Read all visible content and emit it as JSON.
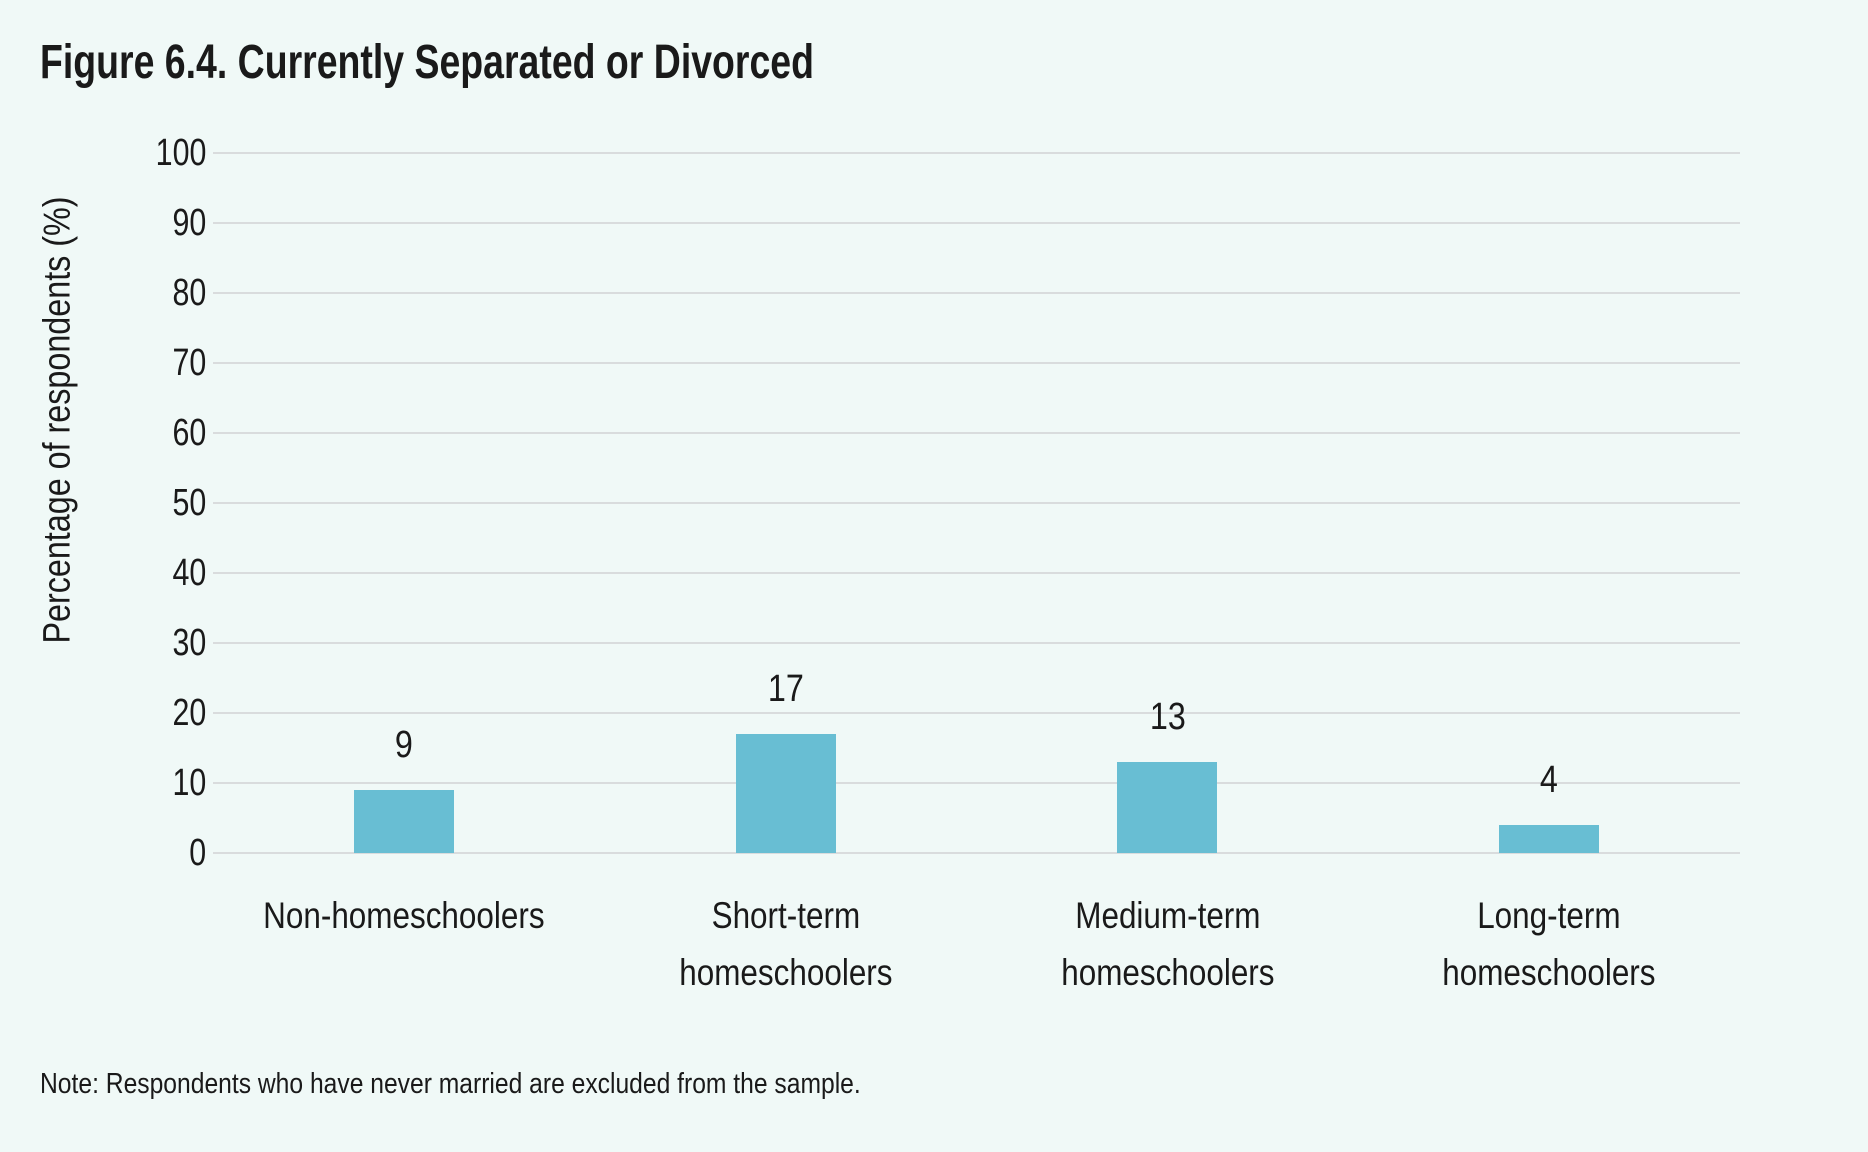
{
  "page": {
    "background_color": "#f0f9f7",
    "text_color": "#1a1a1a"
  },
  "chart_data": {
    "type": "bar",
    "title": "Figure 6.4. Currently Separated or Divorced",
    "categories": [
      "Non-homeschoolers",
      "Short-term homeschoolers",
      "Medium-term homeschoolers",
      "Long-term homeschoolers"
    ],
    "category_lines": [
      [
        "Non-homeschoolers"
      ],
      [
        "Short-term",
        "homeschoolers"
      ],
      [
        "Medium-term",
        "homeschoolers"
      ],
      [
        "Long-term",
        "homeschoolers"
      ]
    ],
    "values": [
      9,
      17,
      13,
      4
    ],
    "bar_labels": [
      "9",
      "17",
      "13",
      "4"
    ],
    "xlabel": "",
    "ylabel": "Percentage of respondents (%)",
    "ylim": [
      0,
      100
    ],
    "yticks": [
      0,
      10,
      20,
      30,
      40,
      50,
      60,
      70,
      80,
      90,
      100
    ],
    "grid": "horizontal",
    "legend": "none",
    "bar_color": "#68bed3",
    "gridline_color": "#d9dcdd",
    "note": "Note: Respondents who have never married are excluded from the sample."
  }
}
